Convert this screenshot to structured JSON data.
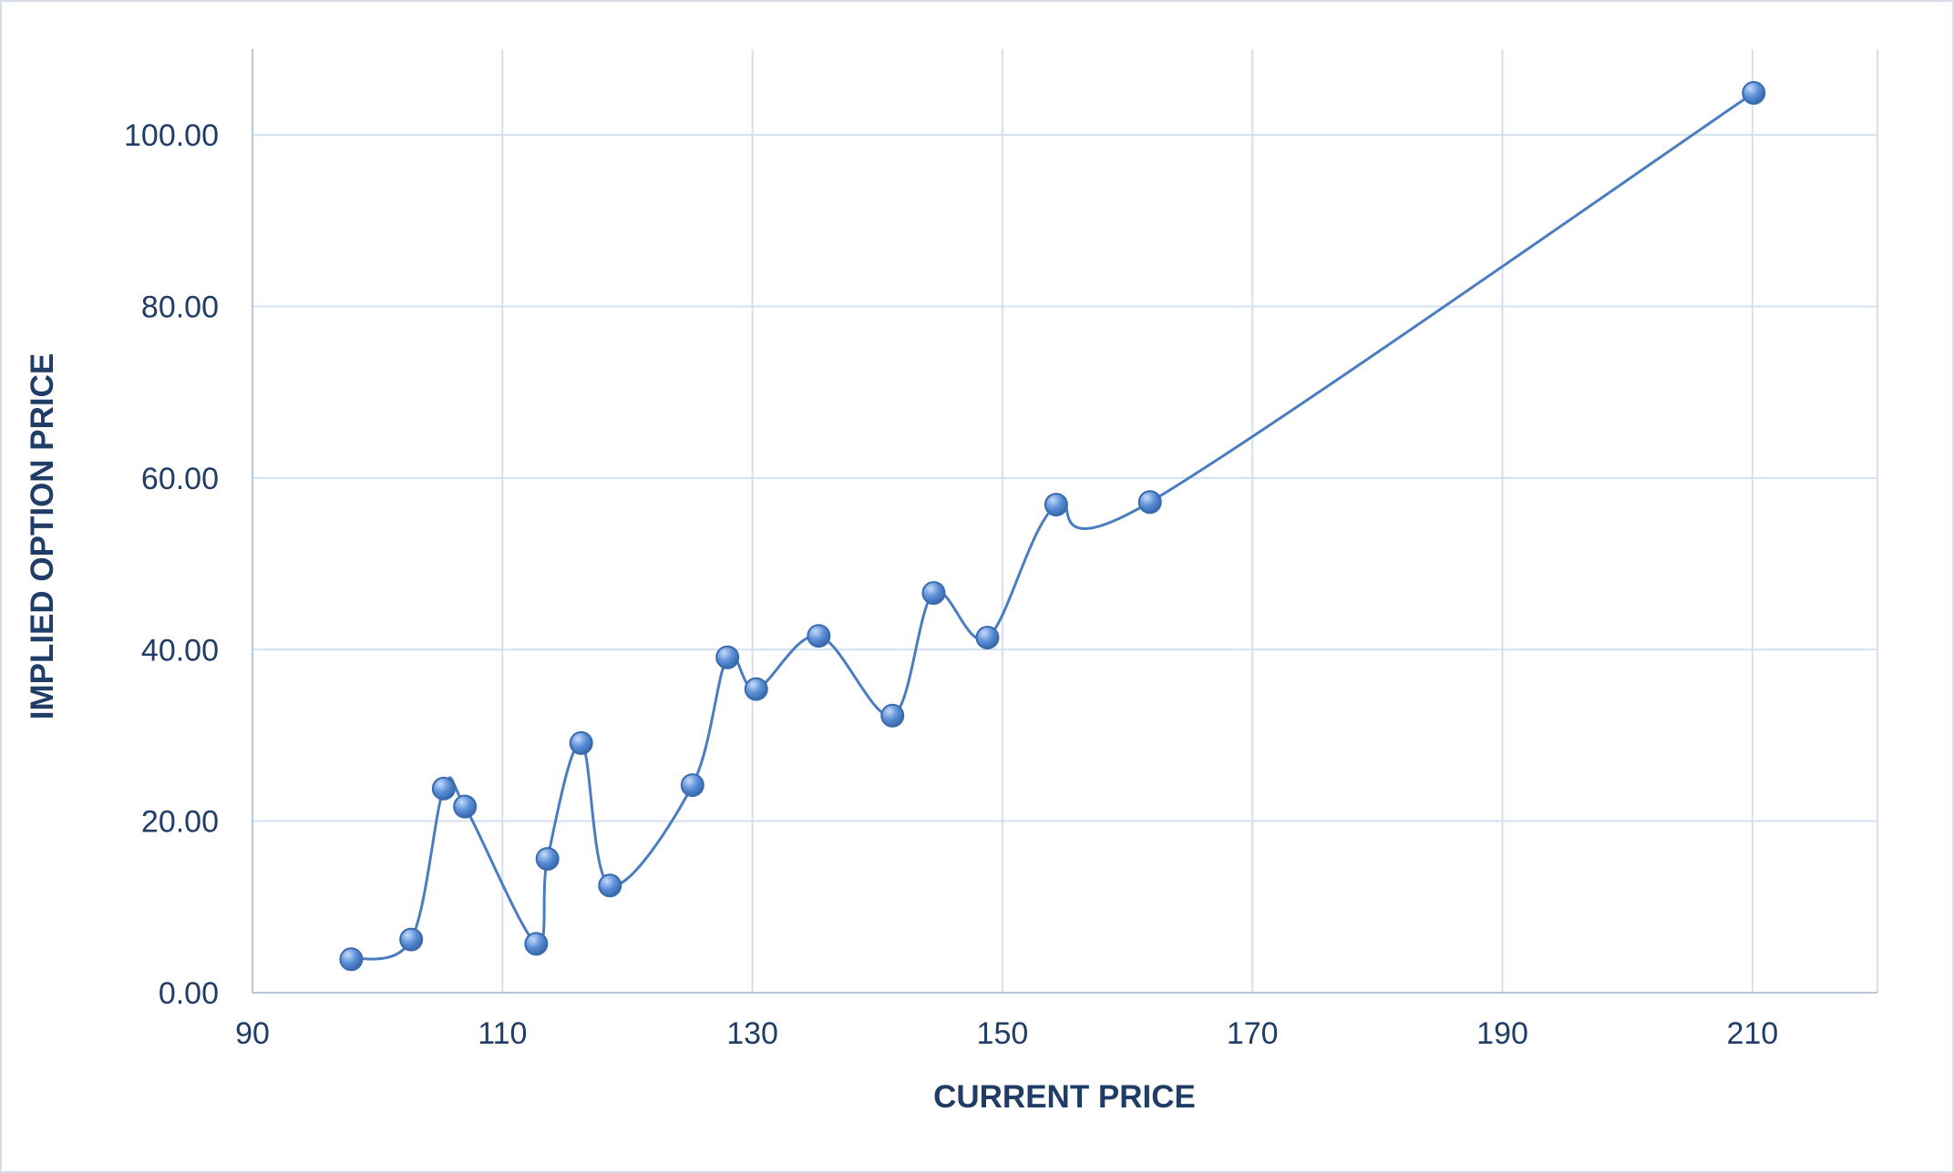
{
  "chart_data": {
    "type": "scatter",
    "mode": "smooth-line-with-markers",
    "xlabel": "CURRENT PRICE",
    "ylabel": "IMPLIED OPTION PRICE",
    "xlim": [
      90,
      220
    ],
    "ylim": [
      0,
      110
    ],
    "x_ticks": [
      90,
      110,
      130,
      150,
      170,
      190,
      210
    ],
    "x_tick_labels": [
      "90",
      "110",
      "130",
      "150",
      "170",
      "190",
      "210"
    ],
    "y_ticks": [
      0,
      20,
      40,
      60,
      80,
      100
    ],
    "y_tick_labels": [
      "0.00",
      "20.00",
      "40.00",
      "60.00",
      "80.00",
      "100.00"
    ],
    "grid": true,
    "legend": "none",
    "colors": {
      "line": "#4a7cc0",
      "marker_fill": "#5b8fd8",
      "marker_highlight": "#c5dbf7",
      "marker_stroke": "#3a6aae",
      "grid": "#d4e0f0",
      "axis_text": "#1f3d66"
    },
    "points": [
      {
        "x": 97.9,
        "y": 3.9
      },
      {
        "x": 102.7,
        "y": 6.2
      },
      {
        "x": 105.3,
        "y": 23.8
      },
      {
        "x": 107.0,
        "y": 21.7
      },
      {
        "x": 112.7,
        "y": 5.7
      },
      {
        "x": 113.6,
        "y": 15.6
      },
      {
        "x": 116.3,
        "y": 29.1
      },
      {
        "x": 118.6,
        "y": 12.5
      },
      {
        "x": 125.2,
        "y": 24.2
      },
      {
        "x": 128.0,
        "y": 39.1
      },
      {
        "x": 130.3,
        "y": 35.4
      },
      {
        "x": 135.3,
        "y": 41.6
      },
      {
        "x": 141.2,
        "y": 32.3
      },
      {
        "x": 144.5,
        "y": 46.6
      },
      {
        "x": 148.8,
        "y": 41.4
      },
      {
        "x": 154.3,
        "y": 56.9
      },
      {
        "x": 161.8,
        "y": 57.2
      },
      {
        "x": 210.1,
        "y": 104.9
      }
    ]
  }
}
